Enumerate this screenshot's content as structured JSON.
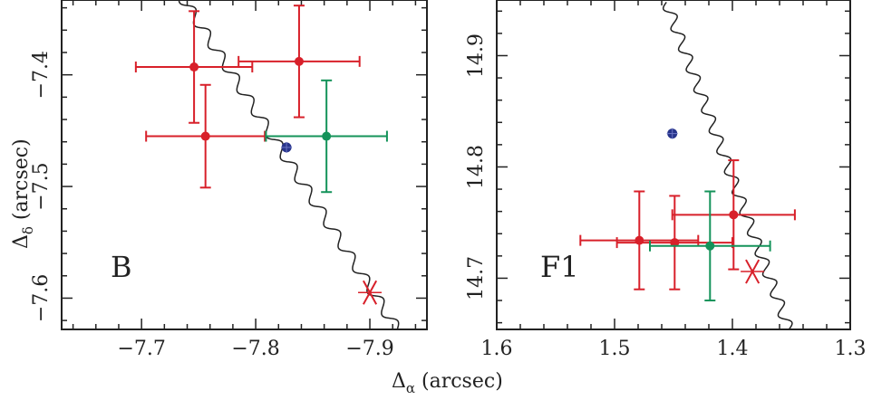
{
  "chart_data": {
    "type": "scatter",
    "xlabel": "Δ",
    "xlabel_sub": "α",
    "xlabel_unit": " (arcsec)",
    "ylabel": "Δ",
    "ylabel_sub": "δ",
    "ylabel_unit": " (arcsec)",
    "colors": {
      "red": "#d8202a",
      "green": "#14935a",
      "blue": "#27348b",
      "black": "#222222"
    },
    "panels": [
      {
        "label": "B",
        "xlim": [
          -7.63,
          -7.95
        ],
        "ylim": [
          -7.628,
          -7.333
        ],
        "xticks": [
          -7.7,
          -7.8,
          -7.9
        ],
        "xtick_labels": [
          "−7.7",
          "−7.8",
          "−7.9"
        ],
        "yticks": [
          -7.4,
          -7.5,
          -7.6
        ],
        "ytick_labels": [
          "−7.4",
          "−7.5",
          "−7.6"
        ],
        "curve": {
          "from": [
            -7.734,
            -7.328
          ],
          "to": [
            -7.924,
            -7.628
          ],
          "wiggles": 15,
          "amplitude": 0.0045
        },
        "red_points": [
          {
            "x": -7.746,
            "y": -7.393,
            "xerr": 0.051,
            "yerr": 0.05
          },
          {
            "x": -7.756,
            "y": -7.455,
            "xerr": 0.052,
            "yerr": 0.046
          },
          {
            "x": -7.838,
            "y": -7.388,
            "xerr": 0.053,
            "yerr": 0.05
          }
        ],
        "green_points": [
          {
            "x": -7.862,
            "y": -7.455,
            "xerr": 0.053,
            "yerr": 0.05
          }
        ],
        "blue_points": [
          {
            "x": -7.827,
            "y": -7.465
          }
        ],
        "cross": {
          "x": -7.9,
          "y": -7.595
        }
      },
      {
        "label": "F1",
        "xlim": [
          1.6,
          1.3
        ],
        "ylim": [
          14.654,
          14.95
        ],
        "xticks": [
          1.6,
          1.5,
          1.4,
          1.3
        ],
        "xtick_labels": [
          "1.6",
          "1.5",
          "1.4",
          "1.3"
        ],
        "yticks": [
          14.7,
          14.8,
          14.9
        ],
        "ytick_labels": [
          "14.7",
          "14.8",
          "14.9"
        ],
        "curve": {
          "from": [
            1.456,
            14.948
          ],
          "to": [
            1.352,
            14.654
          ],
          "wiggles": 16,
          "amplitude": 0.0045
        },
        "red_points": [
          {
            "x": 1.479,
            "y": 14.734,
            "xerr": 0.05,
            "yerr": 0.044
          },
          {
            "x": 1.449,
            "y": 14.732,
            "xerr": 0.049,
            "yerr": 0.042
          },
          {
            "x": 1.399,
            "y": 14.757,
            "xerr": 0.052,
            "yerr": 0.049
          }
        ],
        "green_points": [
          {
            "x": 1.419,
            "y": 14.729,
            "xerr": 0.051,
            "yerr": 0.049
          }
        ],
        "blue_points": [
          {
            "x": 1.451,
            "y": 14.83
          }
        ],
        "cross": {
          "x": 1.383,
          "y": 14.706
        }
      }
    ]
  }
}
